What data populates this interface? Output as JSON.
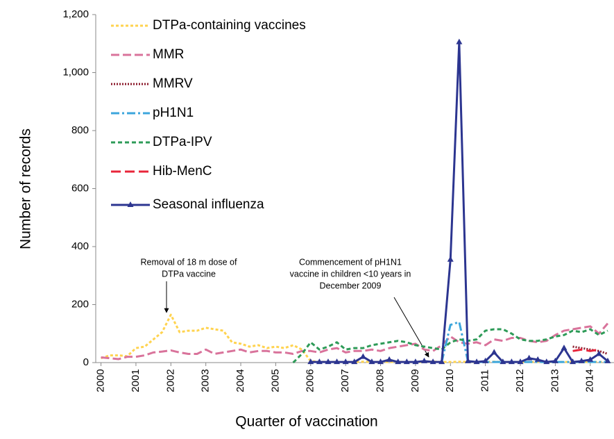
{
  "chart_data": {
    "type": "line",
    "y_label": "Number of records",
    "x_label": "Quarter of vaccination",
    "x": [
      2000,
      2000.25,
      2000.5,
      2000.75,
      2001,
      2001.25,
      2001.5,
      2001.75,
      2002,
      2002.25,
      2002.5,
      2002.75,
      2003,
      2003.25,
      2003.5,
      2003.75,
      2004,
      2004.25,
      2004.5,
      2004.75,
      2005,
      2005.25,
      2005.5,
      2005.75,
      2006,
      2006.25,
      2006.5,
      2006.75,
      2007,
      2007.25,
      2007.5,
      2007.75,
      2008,
      2008.25,
      2008.5,
      2008.75,
      2009,
      2009.25,
      2009.5,
      2009.75,
      2010,
      2010.25,
      2010.5,
      2010.75,
      2011,
      2011.25,
      2011.5,
      2011.75,
      2012,
      2012.25,
      2012.5,
      2012.75,
      2013,
      2013.25,
      2013.5,
      2013.75,
      2014,
      2014.25,
      2014.5
    ],
    "xlim": [
      1999.85,
      2014.68
    ],
    "xticks": [
      2000,
      2001,
      2002,
      2003,
      2004,
      2005,
      2006,
      2007,
      2008,
      2009,
      2010,
      2011,
      2012,
      2013,
      2014
    ],
    "ylim": [
      0,
      1200
    ],
    "yticks": [
      0,
      200,
      400,
      600,
      800,
      {
        "value": 1000,
        "label": "1,000"
      },
      {
        "value": 1200,
        "label": "1,200"
      }
    ],
    "legend": "upper left",
    "series": [
      {
        "name": "DTPa-containing vaccines",
        "color": "#ffd34f",
        "dash": "4,3",
        "values": [
          15,
          25,
          25,
          22,
          50,
          55,
          80,
          105,
          165,
          105,
          110,
          110,
          120,
          115,
          110,
          70,
          65,
          55,
          60,
          50,
          55,
          50,
          60,
          45,
          5,
          3,
          2,
          2,
          2,
          2,
          3,
          2,
          2,
          2,
          3,
          2,
          2,
          2,
          3,
          2,
          2,
          3,
          2,
          2,
          2,
          3,
          2,
          2,
          2,
          2,
          2,
          2,
          2,
          2,
          2,
          2,
          2,
          2,
          2
        ]
      },
      {
        "name": "MMR",
        "color": "#d9739b",
        "dash": "12,5",
        "values": [
          18,
          15,
          12,
          20,
          20,
          25,
          35,
          38,
          42,
          35,
          30,
          30,
          45,
          30,
          35,
          40,
          45,
          35,
          40,
          40,
          35,
          35,
          30,
          40,
          40,
          35,
          45,
          50,
          35,
          40,
          40,
          45,
          40,
          50,
          55,
          60,
          65,
          45,
          40,
          60,
          90,
          70,
          65,
          70,
          60,
          80,
          75,
          85,
          85,
          75,
          70,
          75,
          95,
          110,
          115,
          120,
          125,
          100,
          135
        ]
      },
      {
        "name": "MMRV",
        "color": "#8b1a2b",
        "dash": "2,2",
        "values": [
          null,
          null,
          null,
          null,
          null,
          null,
          null,
          null,
          null,
          null,
          null,
          null,
          null,
          null,
          null,
          null,
          null,
          null,
          null,
          null,
          null,
          null,
          null,
          null,
          null,
          null,
          null,
          null,
          null,
          null,
          null,
          null,
          null,
          null,
          null,
          null,
          null,
          null,
          null,
          null,
          null,
          null,
          null,
          null,
          null,
          null,
          null,
          null,
          null,
          null,
          null,
          null,
          null,
          null,
          55,
          50,
          45,
          40,
          30
        ]
      },
      {
        "name": "pH1N1",
        "color": "#3ca6dc",
        "dash": "12,4,3,4",
        "values": [
          null,
          null,
          null,
          null,
          null,
          null,
          null,
          null,
          null,
          null,
          null,
          null,
          null,
          null,
          null,
          null,
          null,
          null,
          null,
          null,
          null,
          null,
          null,
          null,
          null,
          null,
          null,
          null,
          null,
          null,
          null,
          null,
          null,
          null,
          null,
          null,
          null,
          null,
          null,
          2,
          130,
          140,
          5,
          2,
          2,
          2,
          2,
          2,
          2,
          2,
          2,
          2,
          2,
          2,
          2,
          2,
          2,
          2,
          2
        ]
      },
      {
        "name": "DTPa-IPV",
        "color": "#2e9b58",
        "dash": "6,4",
        "values": [
          null,
          null,
          null,
          null,
          null,
          null,
          null,
          null,
          null,
          null,
          null,
          null,
          null,
          null,
          null,
          null,
          null,
          null,
          null,
          null,
          null,
          null,
          0,
          30,
          70,
          45,
          55,
          70,
          45,
          50,
          50,
          60,
          65,
          70,
          75,
          70,
          60,
          55,
          50,
          45,
          70,
          80,
          75,
          80,
          110,
          115,
          115,
          100,
          80,
          75,
          75,
          80,
          90,
          95,
          110,
          105,
          115,
          95,
          110
        ]
      },
      {
        "name": "Hib-MenC",
        "color": "#e8253a",
        "dash": "14,6",
        "values": [
          null,
          null,
          null,
          null,
          null,
          null,
          null,
          null,
          null,
          null,
          null,
          null,
          null,
          null,
          null,
          null,
          null,
          null,
          null,
          null,
          null,
          null,
          null,
          null,
          null,
          null,
          null,
          null,
          null,
          null,
          null,
          null,
          null,
          null,
          null,
          null,
          null,
          null,
          null,
          null,
          null,
          null,
          null,
          null,
          null,
          null,
          null,
          null,
          null,
          null,
          null,
          null,
          null,
          null,
          40,
          45,
          40,
          45,
          null
        ]
      },
      {
        "name": "Seasonal influenza",
        "color": "#2c3590",
        "dash": "",
        "marker": "triangle",
        "values": [
          null,
          null,
          null,
          null,
          null,
          null,
          null,
          null,
          null,
          null,
          null,
          null,
          null,
          null,
          null,
          null,
          null,
          null,
          null,
          null,
          null,
          null,
          null,
          null,
          2,
          2,
          2,
          2,
          2,
          2,
          20,
          2,
          2,
          10,
          2,
          2,
          2,
          5,
          2,
          2,
          355,
          1105,
          5,
          2,
          5,
          35,
          2,
          2,
          2,
          15,
          10,
          2,
          5,
          50,
          2,
          5,
          10,
          30,
          5
        ]
      }
    ],
    "annotations": [
      {
        "lines": [
          "Removal of 18 m dose of",
          "DTPa vaccine"
        ]
      },
      {
        "lines": [
          "Commencement of pH1N1",
          "vaccine in children <10 years in",
          "December 2009"
        ]
      }
    ]
  }
}
